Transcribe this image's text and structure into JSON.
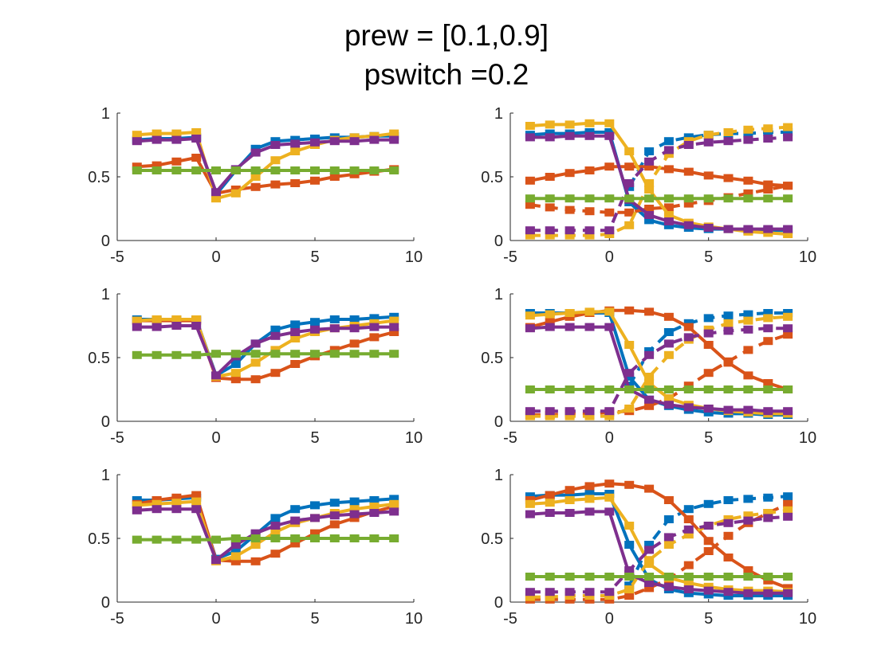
{
  "figure": {
    "title_line1": "prew = [0.1,0.9]",
    "title_line2": "pswitch =0.2"
  },
  "colors": {
    "blue": "#0072BD",
    "orange": "#D95319",
    "yellow": "#EDB120",
    "purple": "#7E2F8E",
    "green": "#77AC30",
    "axis": "#262626"
  },
  "chart_data": [
    {
      "type": "line",
      "panel": "row1-left",
      "xlim": [
        -5,
        10
      ],
      "ylim": [
        0,
        1
      ],
      "xticks": [
        -5,
        0,
        5,
        10
      ],
      "yticks": [
        0,
        0.5,
        1
      ],
      "xticklabels": [
        "-5",
        "0",
        "5",
        "10"
      ],
      "yticklabels": [
        "0",
        "0.5",
        "1"
      ],
      "x": [
        -4,
        -3,
        -2,
        -1,
        0,
        1,
        2,
        3,
        4,
        5,
        6,
        7,
        8,
        9
      ],
      "series": [
        {
          "color": "blue",
          "style": "solid",
          "values": [
            0.79,
            0.8,
            0.8,
            0.81,
            0.36,
            0.55,
            0.72,
            0.78,
            0.79,
            0.8,
            0.81,
            0.81,
            0.82,
            0.82
          ]
        },
        {
          "color": "orange",
          "style": "solid",
          "values": [
            0.58,
            0.59,
            0.62,
            0.65,
            0.37,
            0.4,
            0.42,
            0.44,
            0.45,
            0.47,
            0.5,
            0.52,
            0.54,
            0.56
          ]
        },
        {
          "color": "yellow",
          "style": "solid",
          "values": [
            0.83,
            0.84,
            0.84,
            0.85,
            0.33,
            0.37,
            0.5,
            0.63,
            0.7,
            0.75,
            0.79,
            0.81,
            0.82,
            0.84
          ]
        },
        {
          "color": "purple",
          "style": "solid",
          "values": [
            0.78,
            0.79,
            0.79,
            0.8,
            0.38,
            0.56,
            0.69,
            0.75,
            0.76,
            0.77,
            0.78,
            0.78,
            0.79,
            0.79
          ]
        },
        {
          "color": "green",
          "style": "solid",
          "values": [
            0.55,
            0.55,
            0.55,
            0.55,
            0.55,
            0.55,
            0.55,
            0.55,
            0.55,
            0.55,
            0.55,
            0.55,
            0.55,
            0.55
          ]
        }
      ]
    },
    {
      "type": "line",
      "panel": "row1-right",
      "xlim": [
        -5,
        10
      ],
      "ylim": [
        0,
        1
      ],
      "xticks": [
        -5,
        0,
        5,
        10
      ],
      "yticks": [
        0,
        0.5,
        1
      ],
      "xticklabels": [
        "-5",
        "0",
        "5",
        "10"
      ],
      "yticklabels": [
        "0",
        "0.5",
        "1"
      ],
      "x": [
        -4,
        -3,
        -2,
        -1,
        0,
        1,
        2,
        3,
        4,
        5,
        6,
        7,
        8,
        9
      ],
      "series": [
        {
          "color": "blue",
          "style": "solid",
          "values": [
            0.83,
            0.84,
            0.84,
            0.85,
            0.85,
            0.3,
            0.16,
            0.12,
            0.1,
            0.09,
            0.09,
            0.08,
            0.08,
            0.08
          ]
        },
        {
          "color": "blue",
          "style": "dashed",
          "values": [
            null,
            null,
            null,
            null,
            null,
            0.42,
            0.7,
            0.78,
            0.81,
            0.83,
            0.84,
            0.84,
            0.85,
            0.85
          ]
        },
        {
          "color": "orange",
          "style": "solid",
          "values": [
            0.47,
            0.5,
            0.53,
            0.55,
            0.58,
            0.58,
            0.58,
            0.56,
            0.54,
            0.51,
            0.49,
            0.47,
            0.44,
            0.43
          ]
        },
        {
          "color": "orange",
          "style": "dashed",
          "values": [
            0.28,
            0.26,
            0.24,
            0.23,
            0.22,
            0.22,
            0.25,
            0.26,
            0.29,
            0.31,
            0.34,
            0.37,
            0.4,
            0.43
          ]
        },
        {
          "color": "yellow",
          "style": "solid",
          "values": [
            0.9,
            0.91,
            0.91,
            0.92,
            0.92,
            0.7,
            0.4,
            0.2,
            0.14,
            0.11,
            0.09,
            0.07,
            0.06,
            0.05
          ]
        },
        {
          "color": "yellow",
          "style": "dashed",
          "values": [
            0.04,
            0.04,
            0.04,
            0.04,
            0.05,
            0.12,
            0.45,
            0.68,
            0.78,
            0.83,
            0.85,
            0.87,
            0.88,
            0.89
          ]
        },
        {
          "color": "purple",
          "style": "solid",
          "values": [
            0.81,
            0.81,
            0.82,
            0.82,
            0.82,
            0.32,
            0.2,
            0.15,
            0.12,
            0.1,
            0.09,
            0.09,
            0.09,
            0.09
          ]
        },
        {
          "color": "purple",
          "style": "dashed",
          "values": [
            0.08,
            0.08,
            0.08,
            0.08,
            0.08,
            0.45,
            0.62,
            0.71,
            0.75,
            0.77,
            0.78,
            0.79,
            0.8,
            0.81
          ]
        },
        {
          "color": "green",
          "style": "solid",
          "values": [
            0.33,
            0.33,
            0.33,
            0.33,
            0.33,
            0.33,
            0.33,
            0.33,
            0.33,
            0.33,
            0.33,
            0.33,
            0.33,
            0.33
          ]
        }
      ]
    },
    {
      "type": "line",
      "panel": "row2-left",
      "xlim": [
        -5,
        10
      ],
      "ylim": [
        0,
        1
      ],
      "xticks": [
        -5,
        0,
        5,
        10
      ],
      "yticks": [
        0,
        0.5,
        1
      ],
      "xticklabels": [
        "-5",
        "0",
        "5",
        "10"
      ],
      "yticklabels": [
        "0",
        "0.5",
        "1"
      ],
      "x": [
        -4,
        -3,
        -2,
        -1,
        0,
        1,
        2,
        3,
        4,
        5,
        6,
        7,
        8,
        9
      ],
      "series": [
        {
          "color": "blue",
          "style": "solid",
          "values": [
            0.8,
            0.8,
            0.8,
            0.8,
            0.36,
            0.45,
            0.61,
            0.72,
            0.76,
            0.78,
            0.8,
            0.8,
            0.81,
            0.82
          ]
        },
        {
          "color": "orange",
          "style": "solid",
          "values": [
            0.79,
            0.79,
            0.79,
            0.79,
            0.34,
            0.33,
            0.33,
            0.38,
            0.45,
            0.51,
            0.56,
            0.61,
            0.66,
            0.7
          ]
        },
        {
          "color": "yellow",
          "style": "solid",
          "values": [
            0.79,
            0.8,
            0.8,
            0.8,
            0.35,
            0.38,
            0.46,
            0.56,
            0.65,
            0.7,
            0.73,
            0.75,
            0.77,
            0.79
          ]
        },
        {
          "color": "purple",
          "style": "solid",
          "values": [
            0.74,
            0.74,
            0.75,
            0.75,
            0.36,
            0.51,
            0.61,
            0.67,
            0.7,
            0.72,
            0.73,
            0.73,
            0.74,
            0.74
          ]
        },
        {
          "color": "green",
          "style": "solid",
          "values": [
            0.52,
            0.52,
            0.52,
            0.52,
            0.53,
            0.53,
            0.53,
            0.53,
            0.53,
            0.53,
            0.53,
            0.53,
            0.53,
            0.53
          ]
        }
      ]
    },
    {
      "type": "line",
      "panel": "row2-right",
      "xlim": [
        -5,
        10
      ],
      "ylim": [
        0,
        1
      ],
      "xticks": [
        -5,
        0,
        5,
        10
      ],
      "yticks": [
        0,
        0.5,
        1
      ],
      "xticklabels": [
        "-5",
        "0",
        "5",
        "10"
      ],
      "yticklabels": [
        "0",
        "0.5",
        "1"
      ],
      "x": [
        -4,
        -3,
        -2,
        -1,
        0,
        1,
        2,
        3,
        4,
        5,
        6,
        7,
        8,
        9
      ],
      "series": [
        {
          "color": "blue",
          "style": "solid",
          "values": [
            0.85,
            0.85,
            0.85,
            0.85,
            0.85,
            0.35,
            0.17,
            0.12,
            0.09,
            0.07,
            0.06,
            0.06,
            0.05,
            0.05
          ]
        },
        {
          "color": "blue",
          "style": "dashed",
          "values": [
            null,
            null,
            null,
            null,
            null,
            0.28,
            0.55,
            0.7,
            0.77,
            0.81,
            0.83,
            0.84,
            0.85,
            0.85
          ]
        },
        {
          "color": "orange",
          "style": "solid",
          "values": [
            0.74,
            0.78,
            0.82,
            0.85,
            0.87,
            0.87,
            0.86,
            0.82,
            0.74,
            0.6,
            0.46,
            0.36,
            0.3,
            0.25
          ]
        },
        {
          "color": "orange",
          "style": "dashed",
          "values": [
            0.05,
            0.05,
            0.06,
            0.06,
            0.07,
            0.08,
            0.12,
            0.18,
            0.28,
            0.38,
            0.47,
            0.56,
            0.63,
            0.68
          ]
        },
        {
          "color": "yellow",
          "style": "solid",
          "values": [
            0.83,
            0.84,
            0.85,
            0.86,
            0.86,
            0.6,
            0.3,
            0.18,
            0.13,
            0.1,
            0.08,
            0.07,
            0.06,
            0.06
          ]
        },
        {
          "color": "yellow",
          "style": "dashed",
          "values": [
            0.04,
            0.04,
            0.04,
            0.04,
            0.04,
            0.1,
            0.35,
            0.52,
            0.64,
            0.72,
            0.77,
            0.79,
            0.81,
            0.82
          ]
        },
        {
          "color": "purple",
          "style": "solid",
          "values": [
            0.73,
            0.74,
            0.74,
            0.74,
            0.74,
            0.25,
            0.17,
            0.13,
            0.11,
            0.1,
            0.09,
            0.09,
            0.08,
            0.08
          ]
        },
        {
          "color": "purple",
          "style": "dashed",
          "values": [
            0.08,
            0.08,
            0.08,
            0.08,
            0.08,
            0.38,
            0.52,
            0.61,
            0.66,
            0.69,
            0.71,
            0.72,
            0.73,
            0.73
          ]
        },
        {
          "color": "green",
          "style": "solid",
          "values": [
            0.25,
            0.25,
            0.25,
            0.25,
            0.25,
            0.25,
            0.25,
            0.25,
            0.25,
            0.25,
            0.25,
            0.25,
            0.25,
            0.25
          ]
        }
      ]
    },
    {
      "type": "line",
      "panel": "row3-left",
      "xlim": [
        -5,
        10
      ],
      "ylim": [
        0,
        1
      ],
      "xticks": [
        -5,
        0,
        5,
        10
      ],
      "yticks": [
        0,
        0.5,
        1
      ],
      "xticklabels": [
        "-5",
        "0",
        "5",
        "10"
      ],
      "yticklabels": [
        "0",
        "0.5",
        "1"
      ],
      "x": [
        -4,
        -3,
        -2,
        -1,
        0,
        1,
        2,
        3,
        4,
        5,
        6,
        7,
        8,
        9
      ],
      "series": [
        {
          "color": "blue",
          "style": "solid",
          "values": [
            0.8,
            0.8,
            0.81,
            0.82,
            0.34,
            0.4,
            0.53,
            0.66,
            0.73,
            0.76,
            0.78,
            0.79,
            0.8,
            0.81
          ]
        },
        {
          "color": "orange",
          "style": "solid",
          "values": [
            0.77,
            0.8,
            0.82,
            0.84,
            0.33,
            0.32,
            0.32,
            0.38,
            0.46,
            0.54,
            0.61,
            0.66,
            0.71,
            0.75
          ]
        },
        {
          "color": "yellow",
          "style": "solid",
          "values": [
            0.76,
            0.77,
            0.78,
            0.79,
            0.32,
            0.36,
            0.45,
            0.55,
            0.62,
            0.66,
            0.7,
            0.73,
            0.75,
            0.77
          ]
        },
        {
          "color": "purple",
          "style": "solid",
          "values": [
            0.72,
            0.73,
            0.73,
            0.73,
            0.33,
            0.45,
            0.54,
            0.6,
            0.64,
            0.66,
            0.68,
            0.69,
            0.7,
            0.71
          ]
        },
        {
          "color": "green",
          "style": "solid",
          "values": [
            0.49,
            0.49,
            0.49,
            0.49,
            0.49,
            0.5,
            0.5,
            0.5,
            0.5,
            0.5,
            0.5,
            0.5,
            0.5,
            0.5
          ]
        }
      ]
    },
    {
      "type": "line",
      "panel": "row3-right",
      "xlim": [
        -5,
        10
      ],
      "ylim": [
        0,
        1
      ],
      "xticks": [
        -5,
        0,
        5,
        10
      ],
      "yticks": [
        0,
        0.5,
        1
      ],
      "xticklabels": [
        "-5",
        "0",
        "5",
        "10"
      ],
      "yticklabels": [
        "0",
        "0.5",
        "1"
      ],
      "x": [
        -4,
        -3,
        -2,
        -1,
        0,
        1,
        2,
        3,
        4,
        5,
        6,
        7,
        8,
        9
      ],
      "series": [
        {
          "color": "blue",
          "style": "solid",
          "values": [
            0.83,
            0.84,
            0.84,
            0.85,
            0.85,
            0.45,
            0.18,
            0.1,
            0.07,
            0.06,
            0.05,
            0.05,
            0.05,
            0.05
          ]
        },
        {
          "color": "blue",
          "style": "dashed",
          "values": [
            null,
            null,
            null,
            null,
            null,
            0.13,
            0.45,
            0.65,
            0.73,
            0.77,
            0.8,
            0.81,
            0.82,
            0.83
          ]
        },
        {
          "color": "orange",
          "style": "solid",
          "values": [
            0.8,
            0.84,
            0.88,
            0.91,
            0.93,
            0.92,
            0.89,
            0.8,
            0.65,
            0.48,
            0.35,
            0.25,
            0.17,
            0.11
          ]
        },
        {
          "color": "orange",
          "style": "dashed",
          "values": [
            0.02,
            0.02,
            0.02,
            0.02,
            0.02,
            0.05,
            0.11,
            0.18,
            0.29,
            0.4,
            0.52,
            0.62,
            0.7,
            0.77
          ]
        },
        {
          "color": "yellow",
          "style": "solid",
          "values": [
            0.77,
            0.78,
            0.8,
            0.81,
            0.82,
            0.6,
            0.3,
            0.19,
            0.15,
            0.12,
            0.1,
            0.09,
            0.09,
            0.08
          ]
        },
        {
          "color": "yellow",
          "style": "dashed",
          "values": [
            0.04,
            0.04,
            0.05,
            0.05,
            0.05,
            0.1,
            0.33,
            0.45,
            0.53,
            0.6,
            0.65,
            0.68,
            0.7,
            0.72
          ]
        },
        {
          "color": "purple",
          "style": "solid",
          "values": [
            0.69,
            0.7,
            0.7,
            0.71,
            0.71,
            0.22,
            0.15,
            0.12,
            0.1,
            0.09,
            0.08,
            0.07,
            0.07,
            0.07
          ]
        },
        {
          "color": "purple",
          "style": "dashed",
          "values": [
            0.08,
            0.08,
            0.08,
            0.08,
            0.08,
            0.25,
            0.41,
            0.51,
            0.57,
            0.6,
            0.62,
            0.64,
            0.66,
            0.67
          ]
        },
        {
          "color": "green",
          "style": "solid",
          "values": [
            0.2,
            0.2,
            0.2,
            0.2,
            0.2,
            0.2,
            0.2,
            0.2,
            0.2,
            0.2,
            0.2,
            0.2,
            0.2,
            0.2
          ]
        }
      ]
    }
  ]
}
